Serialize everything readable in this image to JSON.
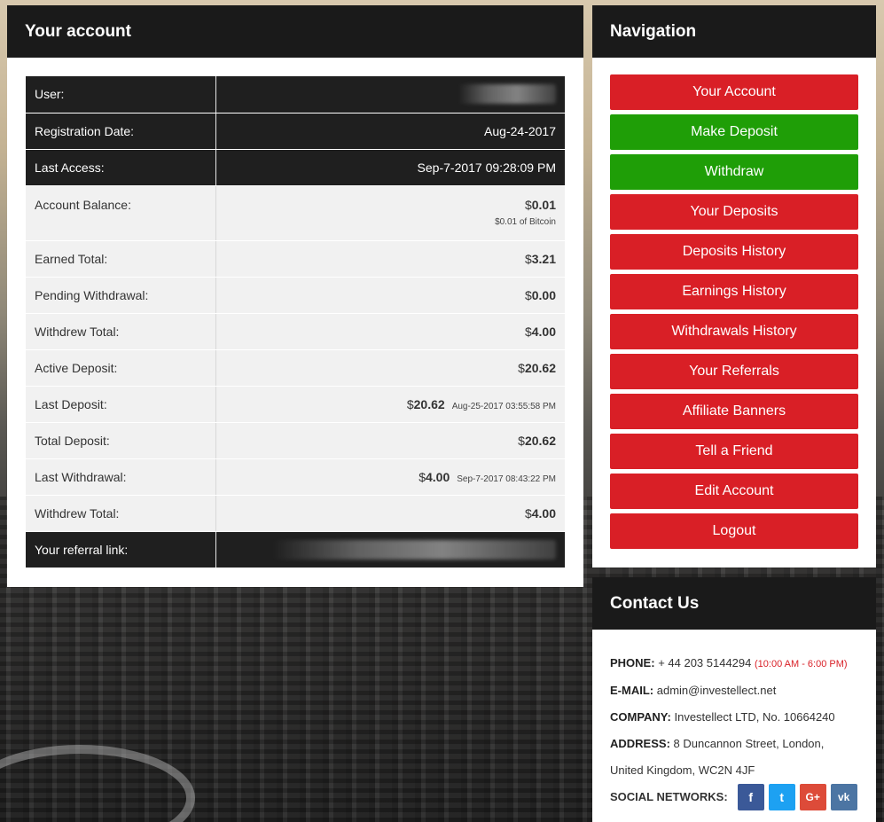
{
  "account": {
    "title": "Your account",
    "rows": {
      "user": {
        "label": "User:"
      },
      "registration": {
        "label": "Registration Date:",
        "value": "Aug-24-2017"
      },
      "last_access": {
        "label": "Last Access:",
        "value": "Sep-7-2017 09:28:09 PM"
      },
      "balance": {
        "label": "Account Balance:",
        "currency": "$",
        "amount": "0.01",
        "note": "$0.01 of Bitcoin"
      },
      "earned": {
        "label": "Earned Total:",
        "currency": "$",
        "amount": "3.21"
      },
      "pending": {
        "label": "Pending Withdrawal:",
        "currency": "$",
        "amount": "0.00"
      },
      "withdrew1": {
        "label": "Withdrew Total:",
        "currency": "$",
        "amount": "4.00"
      },
      "active": {
        "label": "Active Deposit:",
        "currency": "$",
        "amount": "20.62"
      },
      "last_deposit": {
        "label": "Last Deposit:",
        "currency": "$",
        "amount": "20.62",
        "time": "Aug-25-2017 03:55:58 PM"
      },
      "total_deposit": {
        "label": "Total Deposit:",
        "currency": "$",
        "amount": "20.62"
      },
      "last_withdrawal": {
        "label": "Last Withdrawal:",
        "currency": "$",
        "amount": "4.00",
        "time": "Sep-7-2017 08:43:22 PM"
      },
      "withdrew2": {
        "label": "Withdrew Total:",
        "currency": "$",
        "amount": "4.00"
      },
      "referral": {
        "label": "Your referral link:"
      }
    }
  },
  "navigation": {
    "title": "Navigation",
    "items": [
      {
        "label": "Your Account",
        "color": "#d91f26"
      },
      {
        "label": "Make Deposit",
        "color": "#1f9e07"
      },
      {
        "label": "Withdraw",
        "color": "#1f9e07"
      },
      {
        "label": "Your Deposits",
        "color": "#d91f26"
      },
      {
        "label": "Deposits History",
        "color": "#d91f26"
      },
      {
        "label": "Earnings History",
        "color": "#d91f26"
      },
      {
        "label": "Withdrawals History",
        "color": "#d91f26"
      },
      {
        "label": "Your Referrals",
        "color": "#d91f26"
      },
      {
        "label": "Affiliate Banners",
        "color": "#d91f26"
      },
      {
        "label": "Tell a Friend",
        "color": "#d91f26"
      },
      {
        "label": "Edit Account",
        "color": "#d91f26"
      },
      {
        "label": "Logout",
        "color": "#d91f26"
      }
    ]
  },
  "contact": {
    "title": "Contact Us",
    "phone_label": "PHONE:",
    "phone": "+ 44 203 5144294",
    "hours": "(10:00 AM - 6:00 PM)",
    "email_label": "E-MAIL:",
    "email": "admin@investellect.net",
    "company_label": "COMPANY:",
    "company": "Investellect LTD, No. 10664240",
    "address_label": "ADDRESS:",
    "address_line1": "8 Duncannon Street, London,",
    "address_line2": "United Kingdom, WC2N 4JF",
    "social_label": "SOCIAL NETWORKS:",
    "social": [
      {
        "icon": "facebook-icon",
        "glyph": "f"
      },
      {
        "icon": "twitter-icon",
        "glyph": "t"
      },
      {
        "icon": "google-plus-icon",
        "glyph": "G+"
      },
      {
        "icon": "vk-icon",
        "glyph": "vk"
      }
    ]
  }
}
